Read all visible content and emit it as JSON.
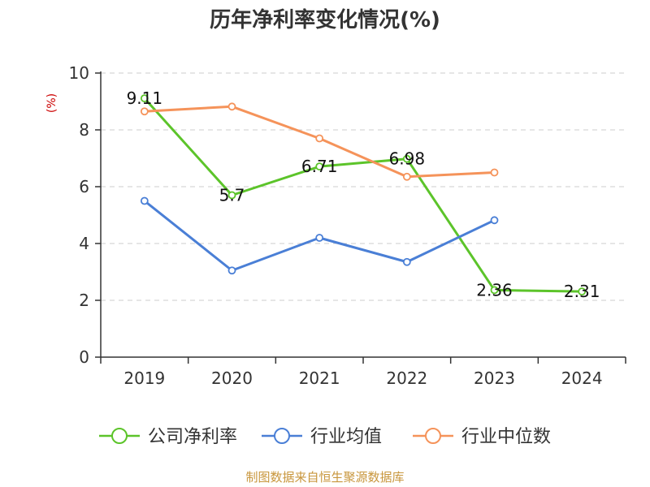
{
  "chart_data": {
    "type": "line",
    "title": "历年净利率变化情况(%)",
    "ylabel": "(%)",
    "xlabel": "",
    "categories": [
      "2019",
      "2020",
      "2021",
      "2022",
      "2023",
      "2024"
    ],
    "ylim": [
      0,
      10
    ],
    "yticks": [
      0,
      2,
      4,
      6,
      8,
      10
    ],
    "grid": true,
    "legend_position": "bottom",
    "series": [
      {
        "name": "公司净利率",
        "color": "#5cc42a",
        "values": [
          9.11,
          5.7,
          6.71,
          6.98,
          2.36,
          2.31
        ],
        "labels": [
          "9.11",
          "5.7",
          "6.71",
          "6.98",
          "2.36",
          "2.31"
        ]
      },
      {
        "name": "行业均值",
        "color": "#4a7fd6",
        "values": [
          5.5,
          3.05,
          4.2,
          3.35,
          4.82,
          null
        ]
      },
      {
        "name": "行业中位数",
        "color": "#f5935a",
        "values": [
          8.65,
          8.82,
          7.7,
          6.35,
          6.5,
          null
        ]
      }
    ],
    "source": "制图数据来自恒生聚源数据库"
  }
}
